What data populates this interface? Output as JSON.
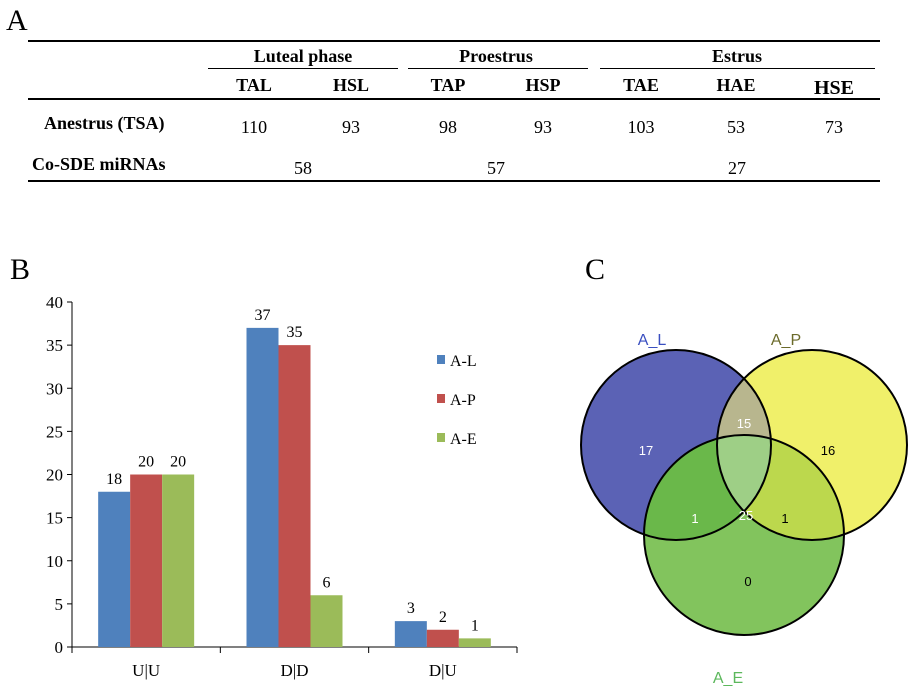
{
  "panels": {
    "a": "A",
    "b": "B",
    "c": "C"
  },
  "table": {
    "groups": [
      "Luteal phase",
      "Proestrus",
      "Estrus"
    ],
    "columns": [
      "TAL",
      "HSL",
      "TAP",
      "HSP",
      "TAE",
      "HAE",
      "HSE"
    ],
    "rows": [
      {
        "label": "Anestrus (TSA)",
        "values": [
          "110",
          "93",
          "98",
          "93",
          "103",
          "53",
          "73"
        ]
      },
      {
        "label": "Co-SDE miRNAs",
        "values": [
          "58",
          "57",
          "27"
        ]
      }
    ]
  },
  "chart_data": [
    {
      "type": "bar",
      "categories": [
        "U|U",
        "D|D",
        "D|U"
      ],
      "series": [
        {
          "name": "A-L",
          "values": [
            18,
            37,
            3
          ],
          "color": "#4f81bd"
        },
        {
          "name": "A-P",
          "values": [
            20,
            35,
            2
          ],
          "color": "#c0504d"
        },
        {
          "name": "A-E",
          "values": [
            20,
            6,
            1
          ],
          "color": "#9bbb59"
        }
      ],
      "ylim": [
        0,
        40
      ],
      "yticks": [
        0,
        5,
        10,
        15,
        20,
        25,
        30,
        35,
        40
      ],
      "legend_position": "right",
      "grid": false
    },
    {
      "type": "venn",
      "sets": [
        {
          "name": "A_L",
          "color": "#5b62b5",
          "label_color": "#3a4fc0"
        },
        {
          "name": "A_P",
          "color": "#f0f06a",
          "label_color": "#6b6a2a"
        },
        {
          "name": "A_E",
          "color": "#82c45d",
          "label_color": "#5cb85c"
        }
      ],
      "regions": {
        "A_L_only": 17,
        "A_P_only": 16,
        "A_E_only": 0,
        "A_L_A_P": 15,
        "A_L_A_E": 1,
        "A_P_A_E": 1,
        "all": 25
      }
    }
  ]
}
